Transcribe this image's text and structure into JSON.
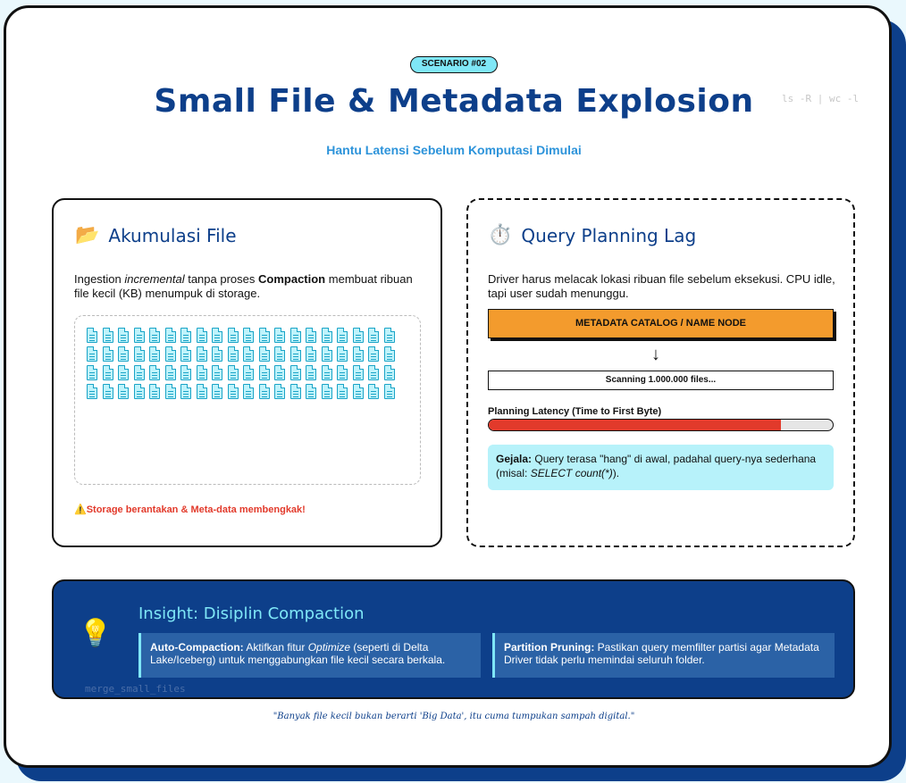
{
  "header": {
    "badge": "SCENARIO #02",
    "title": "Small File & Metadata Explosion",
    "subtitle": "Hantu Latensi Sebelum Komputasi Dimulai",
    "doodle": "ls -R | wc -l"
  },
  "left_panel": {
    "icon": "folder-icon",
    "icon_glyph": "📂",
    "title": "Akumulasi File",
    "desc_prefix": "Ingestion",
    "desc_italic": "incremental",
    "desc_middle": "tanpa proses",
    "desc_bold": "Compaction",
    "desc_suffix": "membuat ribuan file kecil (KB) menumpuk di storage.",
    "file_count": 80,
    "warning_icon": "⚠️",
    "warning": "Storage berantakan & Meta-data membengkak!"
  },
  "right_panel": {
    "icon": "stopwatch-icon",
    "icon_glyph": "⏱️",
    "title": "Query Planning Lag",
    "desc": "Driver harus melacak lokasi ribuan file sebelum eksekusi. CPU idle, tapi user sudah menunggu.",
    "catalog_label": "METADATA CATALOG / NAME NODE",
    "arrow": "↓",
    "scan_label": "Scanning 1.000.000 files...",
    "latency_label": "Planning Latency (Time to First Byte)",
    "latency_fraction": 0.85,
    "symptom_label": "Gejala:",
    "symptom_text": "Query terasa \"hang\" di awal, padahal query-nya sederhana (misal:",
    "symptom_code": "SELECT count(*)",
    "symptom_end": ")."
  },
  "insight": {
    "icon": "lightbulb-icon",
    "icon_glyph": "💡",
    "title": "Insight: Disiplin Compaction",
    "box1_label": "Auto-Compaction:",
    "box1_text_a": "Aktifkan fitur",
    "box1_italic": "Optimize",
    "box1_text_b": "(seperti di Delta Lake/Iceberg) untuk menggabungkan file kecil secara berkala.",
    "box2_label": "Partition Pruning:",
    "box2_text": "Pastikan query memfilter partisi agar Metadata Driver tidak perlu memindai seluruh folder.",
    "faded_text": "merge_small_files"
  },
  "footer": {
    "quote": "\"Banyak file kecil bukan berarti 'Big Data', itu cuma tumpukan sampah digital.\""
  }
}
